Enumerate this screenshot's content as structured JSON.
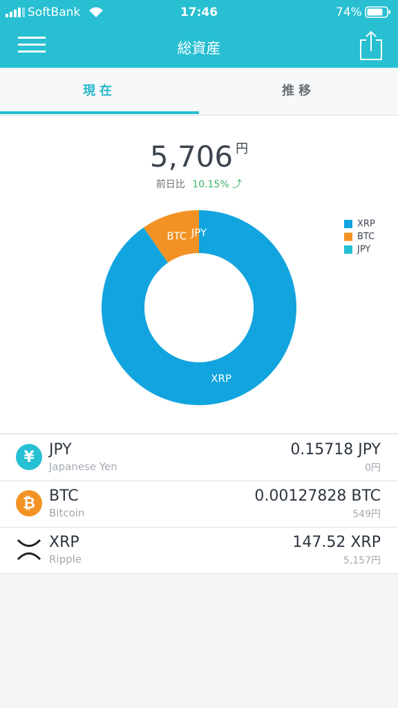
{
  "status_bar": {
    "carrier": "SoftBank",
    "time": "17:46",
    "battery": "74%"
  },
  "nav": {
    "title": "総資産"
  },
  "tabs": [
    "現在",
    "推移"
  ],
  "summary": {
    "total": "5,706",
    "unit": "円",
    "change_label": "前日比",
    "change": "10.15%"
  },
  "chart_data": {
    "type": "pie",
    "donut": true,
    "categories": [
      "XRP",
      "BTC",
      "JPY"
    ],
    "values": [
      5157,
      549,
      0
    ],
    "colors": [
      "#12a4de",
      "#f39224",
      "#26c0d3"
    ],
    "legend": "top-right"
  },
  "assets": [
    {
      "symbol": "JPY",
      "name": "Japanese Yen",
      "amount": "0.15718 JPY",
      "value": "0円"
    },
    {
      "symbol": "BTC",
      "name": "Bitcoin",
      "amount": "0.00127828 BTC",
      "value": "549円"
    },
    {
      "symbol": "XRP",
      "name": "Ripple",
      "amount": "147.52 XRP",
      "value": "5,157円"
    }
  ]
}
